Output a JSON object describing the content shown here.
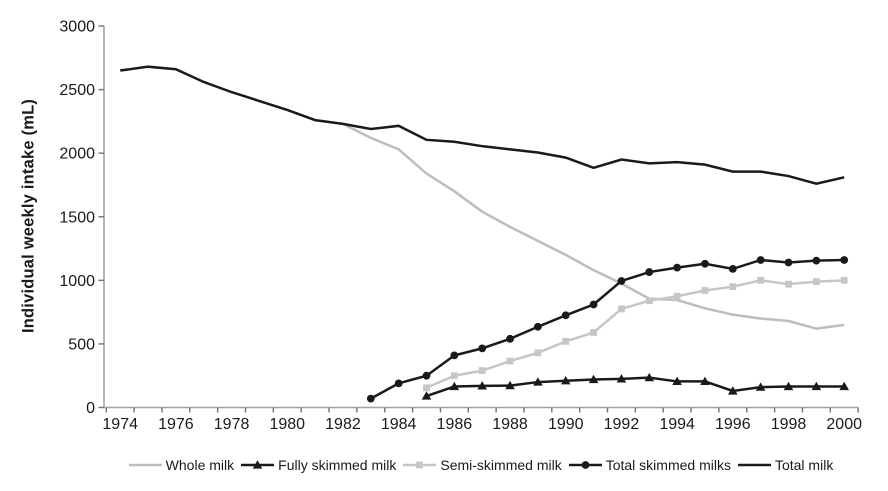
{
  "chart_data": {
    "type": "line",
    "title": "",
    "xlabel": "",
    "ylabel": "Individual weekly intake (mL)",
    "ylim": [
      0,
      3000
    ],
    "yticks": [
      0,
      500,
      1000,
      1500,
      2000,
      2500,
      3000
    ],
    "x_start": 1974,
    "x_end": 2000,
    "xtick_labels": [
      "1974",
      "1976",
      "1978",
      "1980",
      "1982",
      "1984",
      "1986",
      "1988",
      "1990",
      "1992",
      "1994",
      "1996",
      "1998",
      "2000"
    ],
    "grid": false,
    "legend_position": "bottom-center",
    "colors": {
      "black_series": "#1a1a1a",
      "whole_milk_gray": "#bdbdbd",
      "semi_skimmed_gray": "#c6c6c6",
      "axis_line": "#a3a3a3",
      "tick_mark": "#737373",
      "text": "#1a1a1a"
    },
    "series": [
      {
        "name": "Whole milk",
        "marker": "none",
        "color": "#bdbdbd",
        "x_start": 1982,
        "values": [
          2230,
          2120,
          2030,
          1840,
          1700,
          1540,
          1420,
          1310,
          1200,
          1080,
          975,
          855,
          845,
          780,
          730,
          700,
          680,
          620,
          650
        ]
      },
      {
        "name": "Fully skimmed milk",
        "marker": "triangle",
        "color": "#1a1a1a",
        "x_start": 1985,
        "values": [
          90,
          165,
          170,
          172,
          200,
          210,
          220,
          225,
          235,
          205,
          205,
          130,
          160,
          165,
          165,
          165
        ]
      },
      {
        "name": "Semi-skimmed milk",
        "marker": "square",
        "color": "#c6c6c6",
        "x_start": 1985,
        "values": [
          155,
          250,
          290,
          365,
          430,
          520,
          590,
          775,
          840,
          875,
          920,
          950,
          1000,
          970,
          990,
          1000
        ]
      },
      {
        "name": "Total skimmed milks",
        "marker": "circle",
        "color": "#1a1a1a",
        "x_start": 1983,
        "values": [
          70,
          190,
          250,
          410,
          465,
          540,
          635,
          725,
          810,
          995,
          1065,
          1100,
          1130,
          1090,
          1160,
          1140,
          1155,
          1160
        ]
      },
      {
        "name": "Total milk",
        "marker": "none",
        "color": "#1a1a1a",
        "x_start": 1974,
        "values": [
          2650,
          2680,
          2660,
          2560,
          2480,
          2410,
          2340,
          2260,
          2230,
          2190,
          2215,
          2105,
          2090,
          2055,
          2030,
          2005,
          1965,
          1885,
          1950,
          1920,
          1930,
          1910,
          1855,
          1855,
          1820,
          1760,
          1810
        ]
      }
    ]
  }
}
